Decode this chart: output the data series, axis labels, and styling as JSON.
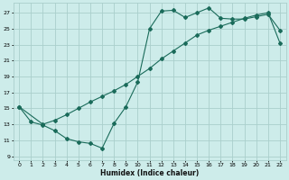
{
  "xlabel": "Humidex (Indice chaleur)",
  "bg_color": "#cdecea",
  "grid_color": "#aacfcc",
  "line_color": "#1a6b5a",
  "xlim": [
    -0.5,
    22.5
  ],
  "ylim": [
    8.5,
    28.2
  ],
  "xticks": [
    0,
    1,
    2,
    3,
    4,
    5,
    6,
    7,
    8,
    9,
    10,
    11,
    12,
    13,
    14,
    15,
    16,
    17,
    18,
    19,
    20,
    21,
    22
  ],
  "yticks": [
    9,
    11,
    13,
    15,
    17,
    19,
    21,
    23,
    25,
    27
  ],
  "line1_x": [
    0,
    1,
    2,
    3,
    4,
    5,
    6,
    7,
    8,
    9,
    10,
    11,
    12,
    13,
    14,
    15,
    16,
    17,
    18,
    19,
    20,
    21,
    22
  ],
  "line1_y": [
    15.2,
    13.3,
    12.9,
    12.2,
    11.2,
    10.8,
    10.6,
    10.0,
    13.1,
    15.2,
    18.3,
    25.0,
    27.2,
    27.3,
    26.4,
    27.0,
    27.6,
    26.3,
    26.2,
    26.2,
    26.5,
    26.8,
    24.8
  ],
  "line2_x": [
    0,
    2,
    3,
    4,
    5,
    6,
    7,
    8,
    9,
    10,
    11,
    12,
    13,
    14,
    15,
    16,
    17,
    18,
    19,
    20,
    21,
    22
  ],
  "line2_y": [
    15.2,
    13.0,
    13.5,
    14.2,
    15.0,
    15.8,
    16.5,
    17.2,
    18.0,
    19.0,
    20.0,
    21.2,
    22.2,
    23.2,
    24.2,
    24.8,
    25.3,
    25.8,
    26.3,
    26.7,
    27.0,
    23.2
  ]
}
